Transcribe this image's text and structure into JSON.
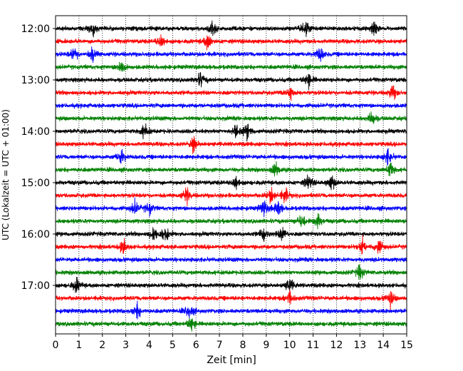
{
  "chart_data": {
    "type": "line",
    "title": "",
    "xlabel": "Zeit  [min]",
    "ylabel": "UTC (Lokalzeit = UTC + 01:00)",
    "xlim": [
      0,
      15
    ],
    "x_ticks": [
      "0",
      "1",
      "2",
      "3",
      "4",
      "5",
      "6",
      "7",
      "8",
      "9",
      "10",
      "11",
      "12",
      "13",
      "14",
      "15"
    ],
    "y_tick_labels": [
      "12:00",
      "13:00",
      "14:00",
      "15:00",
      "16:00",
      "17:00"
    ],
    "grid": "vertical dotted lines at each minute",
    "trace_interval_minutes": 15,
    "trace_colors": [
      "#000000",
      "#ff0000",
      "#0000ff",
      "#008000"
    ],
    "series": [
      {
        "start": "12:00",
        "events": [
          1.6,
          6.7,
          10.7,
          13.6
        ]
      },
      {
        "start": "12:15",
        "events": [
          4.5,
          6.5
        ]
      },
      {
        "start": "12:30",
        "events": [
          0.8,
          1.6,
          11.3
        ]
      },
      {
        "start": "12:45",
        "events": [
          2.8
        ]
      },
      {
        "start": "13:00",
        "events": [
          6.2,
          10.8
        ]
      },
      {
        "start": "13:15",
        "events": [
          10.0,
          14.4
        ]
      },
      {
        "start": "13:30",
        "events": []
      },
      {
        "start": "13:45",
        "events": [
          13.5
        ]
      },
      {
        "start": "14:00",
        "events": [
          3.8,
          7.7,
          8.2
        ]
      },
      {
        "start": "14:15",
        "events": [
          5.9
        ]
      },
      {
        "start": "14:30",
        "events": [
          2.8,
          14.2
        ]
      },
      {
        "start": "14:45",
        "events": [
          9.4,
          14.3
        ]
      },
      {
        "start": "15:00",
        "events": [
          7.7,
          10.8,
          11.8
        ]
      },
      {
        "start": "15:15",
        "events": [
          5.6,
          9.2,
          9.8
        ]
      },
      {
        "start": "15:30",
        "events": [
          3.4,
          4.0,
          8.9,
          9.5
        ]
      },
      {
        "start": "15:45",
        "events": [
          10.5,
          11.2
        ]
      },
      {
        "start": "16:00",
        "events": [
          4.2,
          4.7,
          8.9,
          9.7
        ]
      },
      {
        "start": "16:15",
        "events": [
          2.9,
          13.1,
          13.8
        ]
      },
      {
        "start": "16:30",
        "events": []
      },
      {
        "start": "16:45",
        "events": [
          13.0
        ]
      },
      {
        "start": "17:00",
        "events": [
          0.9,
          10.0
        ]
      },
      {
        "start": "17:15",
        "events": [
          10.0,
          14.3
        ]
      },
      {
        "start": "17:30",
        "events": [
          3.5,
          5.7
        ]
      },
      {
        "start": "17:45",
        "events": [
          5.8
        ]
      }
    ]
  }
}
